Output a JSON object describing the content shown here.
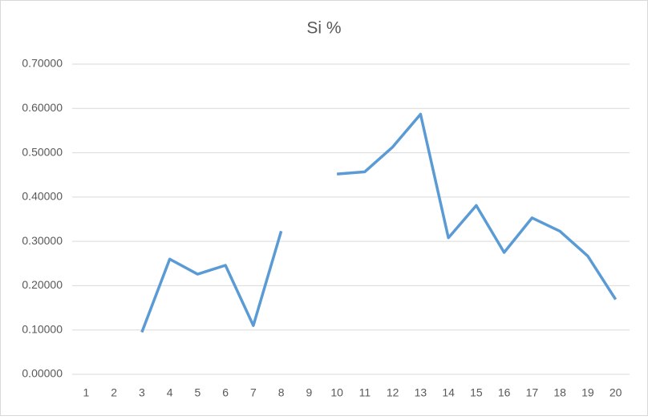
{
  "chart_data": {
    "type": "line",
    "title": "Si %",
    "categories": [
      "1",
      "2",
      "3",
      "4",
      "5",
      "6",
      "7",
      "8",
      "9",
      "10",
      "11",
      "12",
      "13",
      "14",
      "15",
      "16",
      "17",
      "18",
      "19",
      "20"
    ],
    "values": [
      null,
      null,
      0.095,
      0.26,
      0.226,
      0.246,
      0.11,
      0.323,
      null,
      0.452,
      0.457,
      0.513,
      0.587,
      0.308,
      0.381,
      0.275,
      0.353,
      0.323,
      0.267,
      0.169
    ],
    "color": "#5b9bd5",
    "ylim": [
      0,
      0.7
    ],
    "yticks": [
      {
        "value": 0,
        "label": "0.00000"
      },
      {
        "value": 0.1,
        "label": "0.10000"
      },
      {
        "value": 0.2,
        "label": "0.20000"
      },
      {
        "value": 0.3,
        "label": "0.30000"
      },
      {
        "value": 0.4,
        "label": "0.40000"
      },
      {
        "value": 0.5,
        "label": "0.50000"
      },
      {
        "value": 0.6,
        "label": "0.60000"
      },
      {
        "value": 0.7,
        "label": "0.70000"
      }
    ],
    "grid": true
  }
}
